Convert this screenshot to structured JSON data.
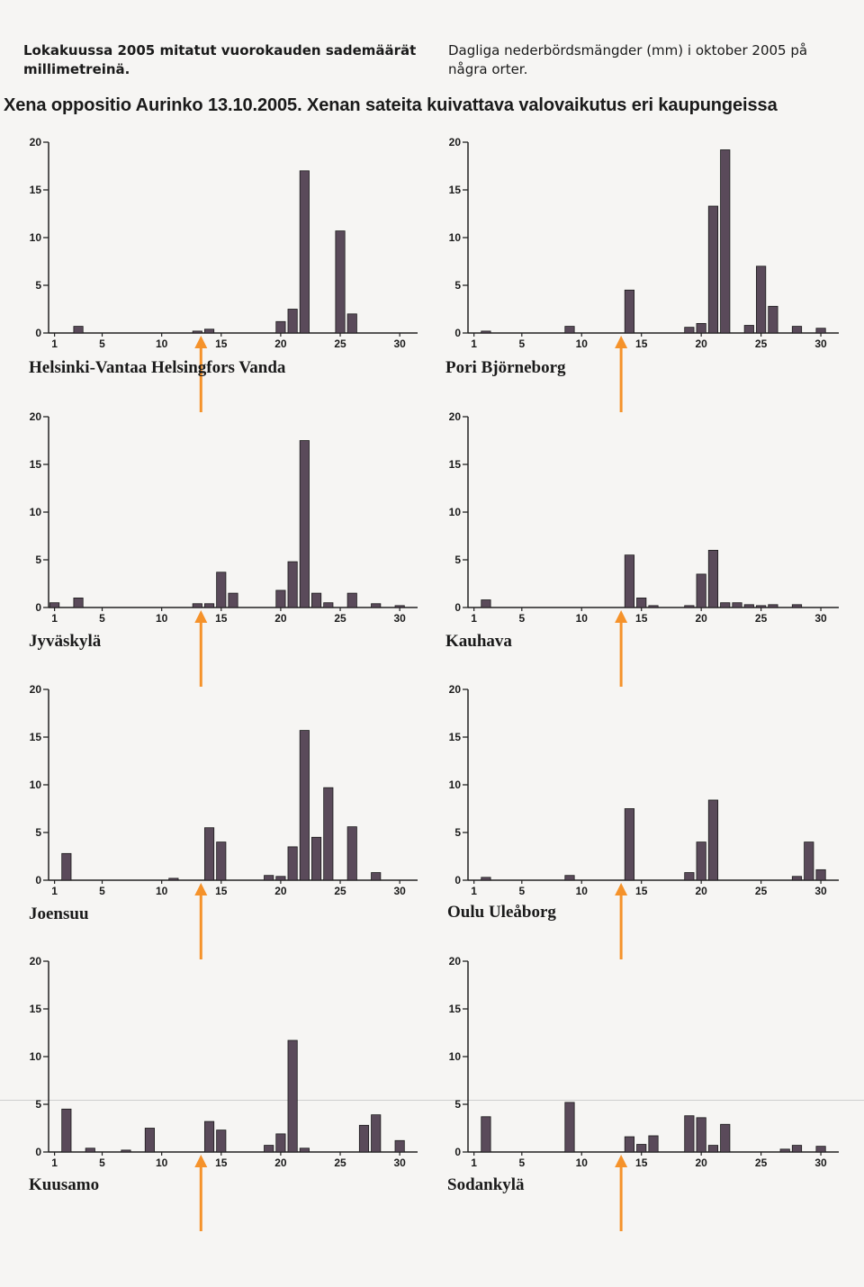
{
  "caption_fi": "Lokakuussa 2005 mitatut vuorokauden sademäärät millimetreinä.",
  "caption_sv": "Dagliga nederbördsmängder (mm) i oktober 2005 på några orter.",
  "title": "Xena oppositio Aurinko 13.10.2005. Xenan sateita kuivattava valovaikutus eri kaupungeissa",
  "colors": {
    "bar": "#5a4a5a",
    "arrow": "#f5922a",
    "axis": "#222222"
  },
  "chart_data": [
    {
      "type": "bar",
      "name": "Helsinki-Vantaa Helsingfors Vanda",
      "x": [
        3,
        13,
        14,
        20,
        21,
        22,
        25,
        26
      ],
      "values": [
        0.7,
        0.2,
        0.4,
        1.2,
        2.5,
        17.0,
        10.7,
        2.0
      ],
      "ylim": [
        0,
        20
      ],
      "yticks": [
        0,
        5,
        10,
        15,
        20
      ],
      "xticks": [
        1,
        5,
        10,
        15,
        20,
        25,
        30
      ],
      "annotation": {
        "type": "arrow",
        "x": 13
      }
    },
    {
      "type": "bar",
      "name": "Pori Björneborg",
      "x": [
        2,
        9,
        14,
        19,
        20,
        21,
        22,
        24,
        25,
        26,
        28,
        30
      ],
      "values": [
        0.2,
        0.7,
        4.5,
        0.6,
        1.0,
        13.3,
        19.2,
        0.8,
        7.0,
        2.8,
        0.7,
        0.5
      ],
      "ylim": [
        0,
        20
      ],
      "yticks": [
        0,
        5,
        10,
        15,
        20
      ],
      "xticks": [
        1,
        5,
        10,
        15,
        20,
        25,
        30
      ],
      "annotation": {
        "type": "arrow",
        "x": 13
      }
    },
    {
      "type": "bar",
      "name": "Jyväskylä",
      "x": [
        1,
        3,
        13,
        14,
        15,
        16,
        20,
        21,
        22,
        23,
        24,
        26,
        28,
        30
      ],
      "values": [
        0.5,
        1.0,
        0.4,
        0.4,
        3.7,
        1.5,
        1.8,
        4.8,
        17.5,
        1.5,
        0.5,
        1.5,
        0.4,
        0.2
      ],
      "ylim": [
        0,
        20
      ],
      "yticks": [
        0,
        5,
        10,
        15,
        20
      ],
      "xticks": [
        1,
        5,
        10,
        15,
        20,
        25,
        30
      ],
      "annotation": {
        "type": "arrow",
        "x": 13
      }
    },
    {
      "type": "bar",
      "name": "Kauhava",
      "x": [
        2,
        14,
        15,
        16,
        19,
        20,
        21,
        22,
        23,
        24,
        25,
        26,
        28
      ],
      "values": [
        0.8,
        5.5,
        1.0,
        0.2,
        0.2,
        3.5,
        6.0,
        0.5,
        0.5,
        0.3,
        0.2,
        0.3,
        0.3
      ],
      "ylim": [
        0,
        20
      ],
      "yticks": [
        0,
        5,
        10,
        15,
        20
      ],
      "xticks": [
        1,
        5,
        10,
        15,
        20,
        25,
        30
      ],
      "annotation": {
        "type": "arrow",
        "x": 13
      }
    },
    {
      "type": "bar",
      "name": "Joensuu",
      "x": [
        2,
        11,
        14,
        15,
        19,
        20,
        21,
        22,
        23,
        24,
        26,
        28
      ],
      "values": [
        2.8,
        0.2,
        5.5,
        4.0,
        0.5,
        0.4,
        3.5,
        15.7,
        4.5,
        9.7,
        5.6,
        0.8
      ],
      "ylim": [
        0,
        20
      ],
      "yticks": [
        0,
        5,
        10,
        15,
        20
      ],
      "xticks": [
        1,
        5,
        10,
        15,
        20,
        25,
        30
      ],
      "annotation": {
        "type": "arrow",
        "x": 13
      }
    },
    {
      "type": "bar",
      "name": "Oulu Uleåborg",
      "x": [
        2,
        9,
        14,
        19,
        20,
        21,
        28,
        29,
        30
      ],
      "values": [
        0.3,
        0.5,
        7.5,
        0.8,
        4.0,
        8.4,
        0.4,
        4.0,
        1.1
      ],
      "ylim": [
        0,
        20
      ],
      "yticks": [
        0,
        5,
        10,
        15,
        20
      ],
      "xticks": [
        1,
        5,
        10,
        15,
        20,
        25,
        30
      ],
      "annotation": {
        "type": "arrow",
        "x": 13
      }
    },
    {
      "type": "bar",
      "name": "Kuusamo",
      "x": [
        2,
        4,
        7,
        9,
        14,
        15,
        19,
        20,
        21,
        22,
        27,
        28,
        30
      ],
      "values": [
        4.5,
        0.4,
        0.2,
        2.5,
        3.2,
        2.3,
        0.7,
        1.9,
        11.7,
        0.4,
        2.8,
        3.9,
        1.2
      ],
      "ylim": [
        0,
        20
      ],
      "yticks": [
        0,
        5,
        10,
        15,
        20
      ],
      "xticks": [
        1,
        5,
        10,
        15,
        20,
        25,
        30
      ],
      "annotation": {
        "type": "arrow",
        "x": 13
      }
    },
    {
      "type": "bar",
      "name": "Sodankylä",
      "x": [
        2,
        9,
        14,
        15,
        16,
        19,
        20,
        21,
        22,
        27,
        28,
        30
      ],
      "values": [
        3.7,
        5.2,
        1.6,
        0.8,
        1.7,
        3.8,
        3.6,
        0.7,
        2.9,
        0.3,
        0.7,
        0.6
      ],
      "ylim": [
        0,
        20
      ],
      "yticks": [
        0,
        5,
        10,
        15,
        20
      ],
      "xticks": [
        1,
        5,
        10,
        15,
        20,
        25,
        30
      ],
      "annotation": {
        "type": "arrow",
        "x": 13
      }
    }
  ]
}
